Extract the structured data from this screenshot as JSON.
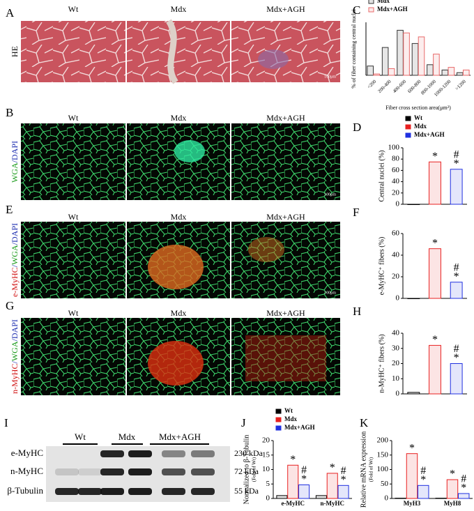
{
  "panel_letters": [
    "A",
    "B",
    "C",
    "D",
    "E",
    "F",
    "G",
    "H",
    "I",
    "J",
    "K"
  ],
  "columns": [
    "Wt",
    "Mdx",
    "Mdx+AGH"
  ],
  "image_rows": [
    {
      "label_parts": [
        {
          "text": "HE",
          "color": "#000000"
        }
      ]
    },
    {
      "label_parts": [
        {
          "text": "WGA",
          "color": "#1a9a1a"
        },
        {
          "text": "/",
          "color": "#1f2fb0"
        },
        {
          "text": "DAPI",
          "color": "#1f2fb0"
        }
      ]
    },
    {
      "label_parts": [
        {
          "text": "e-MyHC",
          "color": "#d01010"
        },
        {
          "text": "/",
          "color": "#1f2fb0"
        },
        {
          "text": "WGA",
          "color": "#1a9a1a"
        },
        {
          "text": "/",
          "color": "#1f2fb0"
        },
        {
          "text": "DAPI",
          "color": "#1f2fb0"
        }
      ]
    },
    {
      "label_parts": [
        {
          "text": "n-MyHC",
          "color": "#d01010"
        },
        {
          "text": "/",
          "color": "#1f2fb0"
        },
        {
          "text": "WGA",
          "color": "#1a9a1a"
        },
        {
          "text": "/",
          "color": "#1f2fb0"
        },
        {
          "text": "DAPI",
          "color": "#1f2fb0"
        }
      ]
    }
  ],
  "scale_bar": "100μm",
  "blot": {
    "lanes": [
      "Wt",
      "Mdx",
      "Mdx+AGH"
    ],
    "proteins": [
      "e-MyHC",
      "n-MyHC",
      "β-Tubulin"
    ],
    "weights": [
      "230 kDa",
      "72 kDa",
      "55 kDa"
    ]
  },
  "chart_data": [
    {
      "type": "bar",
      "y_label": "% of fiber containing central nuclei",
      "x_label": "Fiber cross section area(μm²)",
      "categories": [
        "<200",
        "200-400",
        "400-600",
        "600-800",
        "800-1000",
        "1000-1200",
        ">1200"
      ],
      "series": [
        {
          "name": "Mdx",
          "color": "#333333",
          "values": [
            7,
            21,
            34,
            24,
            8,
            4,
            2
          ]
        },
        {
          "name": "Mdx+AGH",
          "color": "#e86a6a",
          "values": [
            1,
            5,
            32,
            29,
            16,
            6,
            4
          ]
        }
      ],
      "ylim": [
        0,
        40
      ],
      "legend": "top-left"
    },
    {
      "type": "bar",
      "y_label": "Central nuclei (%)",
      "series": [
        {
          "name": "Wt",
          "color": "#000000",
          "values": [
            0
          ]
        },
        {
          "name": "Mdx",
          "color": "#e82020",
          "values": [
            75
          ],
          "annotations": [
            [
              "*"
            ]
          ]
        },
        {
          "name": "Mdx+AGH",
          "color": "#2030e0",
          "values": [
            62
          ],
          "annotations": [
            [
              "#",
              "*"
            ]
          ]
        }
      ],
      "ylim": [
        0,
        100
      ],
      "yticks": [
        0,
        20,
        40,
        60,
        80,
        100
      ],
      "legend": "top-left"
    },
    {
      "type": "bar",
      "y_label": "e-MyHC⁺ fibers (%)",
      "series": [
        {
          "color": "#000000",
          "values": [
            0
          ]
        },
        {
          "color": "#e82020",
          "values": [
            46
          ],
          "annotations": [
            [
              "*"
            ]
          ]
        },
        {
          "color": "#2030e0",
          "values": [
            15
          ],
          "annotations": [
            [
              "#",
              "*"
            ]
          ]
        }
      ],
      "ylim": [
        0,
        60
      ],
      "yticks": [
        0,
        20,
        40,
        60
      ]
    },
    {
      "type": "bar",
      "y_label": "n-MyHC⁺ fibers (%)",
      "series": [
        {
          "color": "#000000",
          "values": [
            1
          ]
        },
        {
          "color": "#e82020",
          "values": [
            32
          ],
          "annotations": [
            [
              "*"
            ]
          ]
        },
        {
          "color": "#2030e0",
          "values": [
            20
          ],
          "annotations": [
            [
              "#",
              "*"
            ]
          ]
        }
      ],
      "ylim": [
        0,
        40
      ],
      "yticks": [
        0,
        10,
        20,
        30,
        40
      ]
    },
    {
      "type": "bar",
      "y_label": "Normalized to β-Tubulin",
      "y_sublabel": "(Fold of Wt)",
      "categories": [
        "e-MyHC",
        "n-MyHC"
      ],
      "series": [
        {
          "name": "Wt",
          "color": "#000000",
          "values": [
            1,
            1
          ]
        },
        {
          "name": "Mdx",
          "color": "#e82020",
          "values": [
            11.5,
            8.7
          ],
          "annotations": [
            [
              "*"
            ],
            [
              "*"
            ]
          ]
        },
        {
          "name": "Mdx+AGH",
          "color": "#2030e0",
          "values": [
            4.7,
            4.5
          ],
          "annotations": [
            [
              "#",
              "*"
            ],
            [
              "#",
              "*"
            ]
          ]
        }
      ],
      "ylim": [
        0,
        20
      ],
      "yticks": [
        0,
        5,
        10,
        15,
        20
      ],
      "legend": "top-left"
    },
    {
      "type": "bar",
      "y_label": "Relative mRNA expression",
      "y_sublabel": "(Fold of Wt)",
      "categories": [
        "MyH3",
        "MyH8"
      ],
      "series": [
        {
          "color": "#000000",
          "values": [
            1,
            1
          ]
        },
        {
          "color": "#e82020",
          "values": [
            155,
            65
          ],
          "annotations": [
            [
              "*"
            ],
            [
              "*"
            ]
          ]
        },
        {
          "color": "#2030e0",
          "values": [
            45,
            17
          ],
          "annotations": [
            [
              "#",
              "*"
            ],
            [
              "#",
              "*"
            ]
          ]
        }
      ],
      "ylim": [
        0,
        200
      ],
      "yticks": [
        0,
        50,
        100,
        150,
        200
      ]
    }
  ]
}
